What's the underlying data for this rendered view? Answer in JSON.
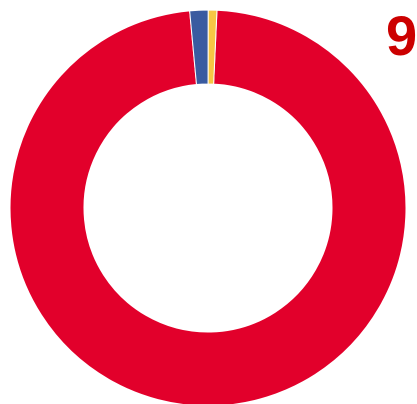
{
  "chart_data": {
    "type": "pie",
    "donut": true,
    "slices": [
      {
        "label": "",
        "value": 97.8,
        "color": "#e2002b"
      },
      {
        "label": "",
        "value": 1.5,
        "color": "#3a5ba0"
      },
      {
        "label": "",
        "value": 0.7,
        "color": "#f7c744"
      }
    ],
    "legend": "none",
    "annotation": "9",
    "annotation_color": "#cc0000"
  }
}
